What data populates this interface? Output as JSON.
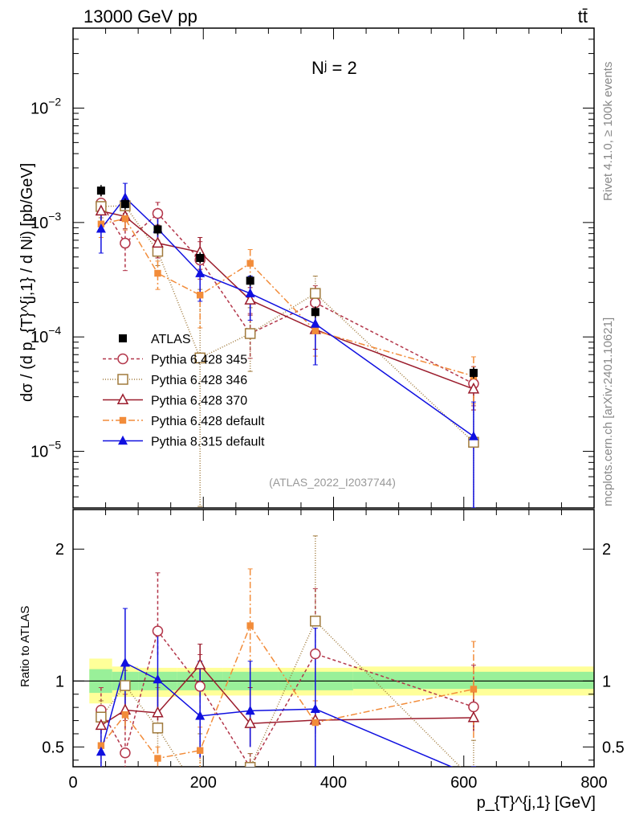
{
  "header": {
    "left": "13000 GeV pp",
    "right": "tt̄"
  },
  "side_labels": {
    "rivet": "Rivet 4.1.0, ≥ 100k events",
    "mcplots": "mcplots.cern.ch [arXiv:2401.10621]"
  },
  "chart_data": {
    "type": "line",
    "title": "Nʲ = 2",
    "analysis_tag": "(ATLAS_2022_I2037744)",
    "xlabel": "p_{T}^{j,1} [GeV]",
    "ylabel": "dσ / (d p_{T}^{j,1} / d Nʲ) [pb/GeV]",
    "ratio_ylabel": "Ratio to ATLAS",
    "x_range": [
      0,
      800
    ],
    "y_range_log": [
      3.2e-06,
      0.05
    ],
    "ratio_range": [
      0.35,
      2.3
    ],
    "x_ticks": [
      "0",
      "200",
      "400",
      "600",
      "800"
    ],
    "y_ticks": [
      {
        "value": 1e-05,
        "label": "10",
        "exp": "−5"
      },
      {
        "value": 0.0001,
        "label": "10",
        "exp": "−4"
      },
      {
        "value": 0.001,
        "label": "10",
        "exp": "−3"
      },
      {
        "value": 0.01,
        "label": "10",
        "exp": "−2"
      }
    ],
    "ratio_ticks": [
      {
        "value": 0.5,
        "label": "0.5"
      },
      {
        "value": 1,
        "label": "1"
      },
      {
        "value": 2,
        "label": "2"
      }
    ],
    "data": {
      "name": "ATLAS",
      "color": "#000000",
      "x": [
        43,
        80,
        130,
        195,
        272,
        372,
        615
      ],
      "y": [
        0.0019,
        0.00145,
        0.00087,
        0.00049,
        0.00031,
        0.000165,
        4.85e-05
      ],
      "bands": [
        {
          "x0": 25,
          "x1": 60,
          "inner": [
            0.91,
            1.09
          ],
          "outer": [
            0.83,
            1.17
          ]
        },
        {
          "x0": 60,
          "x1": 100,
          "inner": [
            0.93,
            1.07
          ],
          "outer": [
            0.88,
            1.11
          ]
        },
        {
          "x0": 100,
          "x1": 160,
          "inner": [
            0.93,
            1.07
          ],
          "outer": [
            0.88,
            1.1
          ]
        },
        {
          "x0": 160,
          "x1": 230,
          "inner": [
            0.93,
            1.07
          ],
          "outer": [
            0.89,
            1.1
          ]
        },
        {
          "x0": 230,
          "x1": 315,
          "inner": [
            0.93,
            1.07
          ],
          "outer": [
            0.89,
            1.1
          ]
        },
        {
          "x0": 315,
          "x1": 430,
          "inner": [
            0.93,
            1.07
          ],
          "outer": [
            0.89,
            1.1
          ]
        },
        {
          "x0": 430,
          "x1": 800,
          "inner": [
            0.94,
            1.07
          ],
          "outer": [
            0.89,
            1.11
          ]
        }
      ]
    },
    "series": [
      {
        "name": "Pythia 6.428 345",
        "color": "#b3364a",
        "dash": "4,3",
        "marker": "open-circle",
        "x": [
          43,
          80,
          130,
          195,
          272,
          372,
          615
        ],
        "y": [
          0.00148,
          0.00066,
          0.0012,
          0.00047,
          0.000107,
          0.000199,
          3.9e-05
        ],
        "err_up": [
          0.0018,
          0.0012,
          0.0015,
          0.00068,
          0.00016,
          0.00028,
          5.5e-05
        ],
        "err_dn": [
          0.0012,
          0.00038,
          0.00095,
          0.00032,
          6.5e-05,
          0.00013,
          2.5e-05
        ],
        "ratio_err_up": [
          0.95,
          0.7,
          1.82,
          1.2,
          0.45,
          1.7,
          1.12
        ],
        "ratio_err_dn": [
          0.65,
          0.25,
          1.18,
          0.65,
          0.2,
          1.1,
          0.62
        ]
      },
      {
        "name": "Pythia 6.428 346",
        "color": "#a07a3c",
        "dash": "1,2",
        "marker": "open-square",
        "x": [
          43,
          80,
          130,
          195,
          272,
          372,
          615
        ],
        "y": [
          0.00138,
          0.0014,
          0.00056,
          6.55e-05,
          0.000107,
          0.00024,
          1.2e-05
        ],
        "err_up": [
          0.0016,
          0.0016,
          0.0007,
          0.00026,
          0.00018,
          0.00034,
          3.6e-05
        ],
        "err_dn": [
          0.0011,
          0.00115,
          0.00042,
          3.3e-06,
          5e-05,
          0.00013,
          3.2e-06
        ],
        "ratio_err_up": [
          0.85,
          1.08,
          0.95,
          0.6,
          0.45,
          2.1,
          0.55
        ],
        "ratio_err_dn": [
          0.6,
          0.82,
          0.45,
          0.35,
          0.2,
          1.0,
          0.35
        ]
      },
      {
        "name": "Pythia 6.428 370",
        "color": "#9b1c2c",
        "dash": "",
        "marker": "open-triangle",
        "x": [
          43,
          80,
          130,
          195,
          272,
          372,
          615
        ],
        "y": [
          0.00126,
          0.00113,
          0.00066,
          0.00055,
          0.00021,
          0.000116,
          3.5e-05
        ],
        "err_up": [
          0.0015,
          0.0014,
          0.00084,
          0.00074,
          0.00027,
          0.00016,
          4.9e-05
        ],
        "err_dn": [
          0.00098,
          0.00088,
          0.00049,
          0.00039,
          0.000155,
          7.8e-05,
          2.3e-05
        ],
        "ratio_err_up": [
          0.8,
          0.9,
          1.0,
          1.28,
          0.95,
          0.85,
          0.92
        ],
        "ratio_err_dn": [
          0.6,
          0.65,
          0.7,
          0.88,
          0.5,
          0.6,
          0.62
        ]
      },
      {
        "name": "Pythia 6.428 default",
        "color": "#f28c3a",
        "dash": "8,3,2,3",
        "marker": "filled-square",
        "x": [
          43,
          80,
          130,
          195,
          272,
          372,
          615
        ],
        "y": [
          0.00097,
          0.00108,
          0.00036,
          0.000232,
          0.00044,
          0.000113,
          4.55e-05
        ],
        "err_up": [
          0.0012,
          0.0013,
          0.00046,
          0.00035,
          0.00058,
          0.00016,
          6.7e-05
        ],
        "err_dn": [
          0.00074,
          0.00086,
          0.00026,
          0.00012,
          0.00031,
          6.8e-05,
          2.6e-05
        ],
        "ratio_err_up": [
          0.65,
          0.9,
          0.5,
          0.65,
          1.85,
          0.85,
          1.3
        ],
        "ratio_err_dn": [
          0.35,
          0.62,
          0.28,
          0.25,
          1.05,
          0.55,
          0.55
        ]
      },
      {
        "name": "Pythia 8.315 default",
        "color": "#1010e0",
        "dash": "",
        "marker": "filled-triangle",
        "x": [
          43,
          80,
          130,
          195,
          272,
          372,
          615
        ],
        "y": [
          0.00088,
          0.00165,
          0.00088,
          0.00036,
          0.00024,
          0.00013,
          1.35e-05
        ],
        "err_up": [
          0.0012,
          0.0022,
          0.00114,
          0.00051,
          0.00034,
          0.00021,
          2.7e-05
        ],
        "err_dn": [
          0.00054,
          0.00114,
          0.00063,
          0.000205,
          0.00014,
          5.7e-05,
          3.2e-06
        ],
        "ratio_err_up": [
          0.7,
          1.55,
          1.35,
          1.15,
          1.15,
          1.4,
          0.35
        ],
        "ratio_err_dn": [
          0.25,
          0.75,
          0.75,
          0.42,
          0.5,
          0.35,
          0.35
        ]
      }
    ]
  }
}
